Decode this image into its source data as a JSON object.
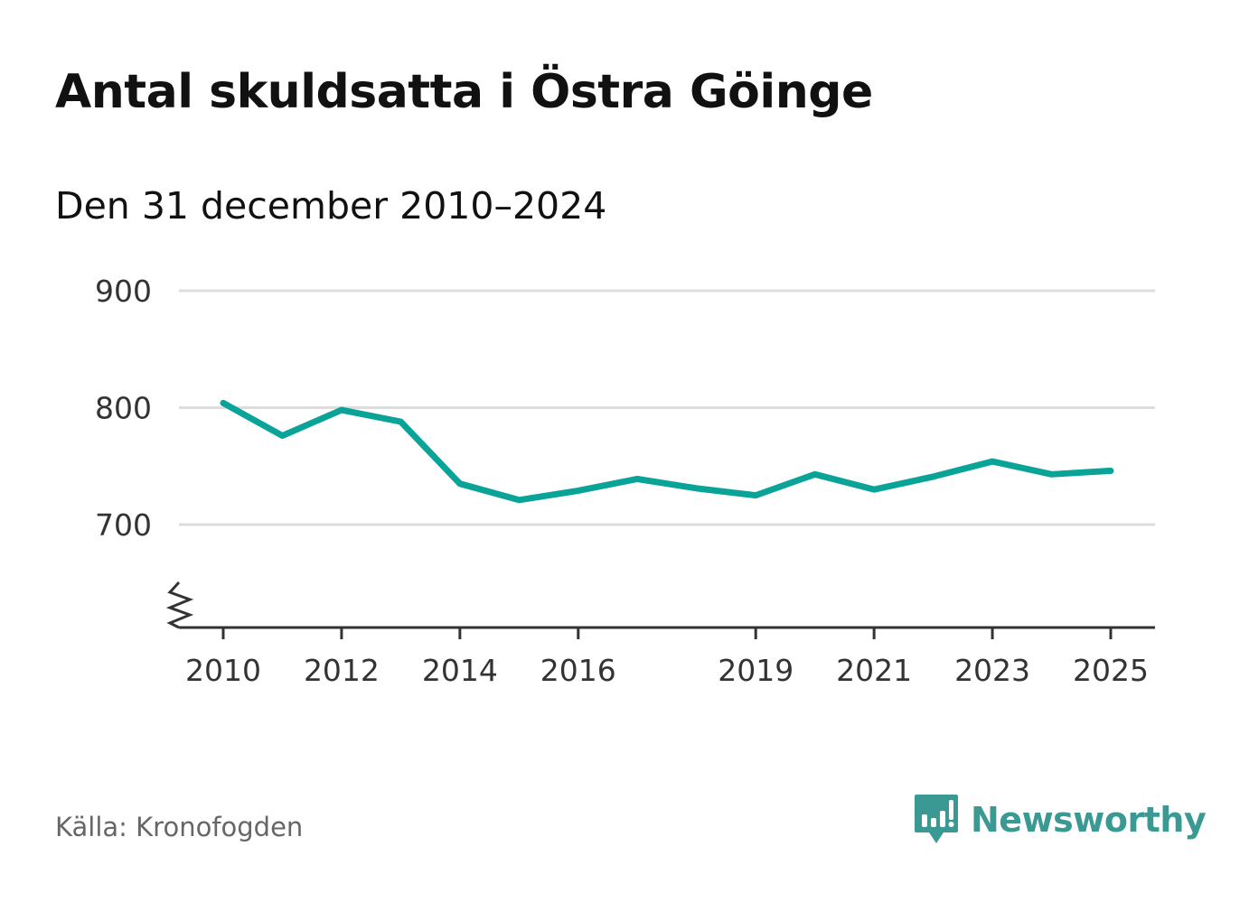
{
  "title": "Antal skuldsatta i Östra Göinge",
  "subtitle": "Den 31 december 2010–2024",
  "source": "Källa: Kronofogden",
  "brand": {
    "name": "Newsworthy",
    "logo_icon": "bar-chart-speech-bubble-icon",
    "color": "#3a9a93"
  },
  "colors": {
    "line": "#0aa398",
    "grid": "#dddddd",
    "axis": "#333333"
  },
  "chart_data": {
    "type": "line",
    "title": "Antal skuldsatta i Östra Göinge",
    "subtitle": "Den 31 december 2010–2024",
    "x": [
      2010,
      2011,
      2012,
      2013,
      2014,
      2015,
      2016,
      2017,
      2018,
      2019,
      2020,
      2021,
      2022,
      2023,
      2024,
      2025
    ],
    "series": [
      {
        "values": [
          804,
          776,
          798,
          788,
          735,
          721,
          729,
          739,
          731,
          725,
          743,
          730,
          741,
          754,
          743,
          746
        ]
      }
    ],
    "x_ticks": [
      "2010",
      "2012",
      "2014",
      "2016",
      "2019",
      "2021",
      "2023",
      "2025"
    ],
    "y_ticks": [
      "700",
      "800",
      "900"
    ],
    "xlim": [
      2010,
      2025
    ],
    "ylim": [
      612,
      900
    ],
    "y_axis_break": true,
    "grid": true,
    "legend": "none"
  }
}
